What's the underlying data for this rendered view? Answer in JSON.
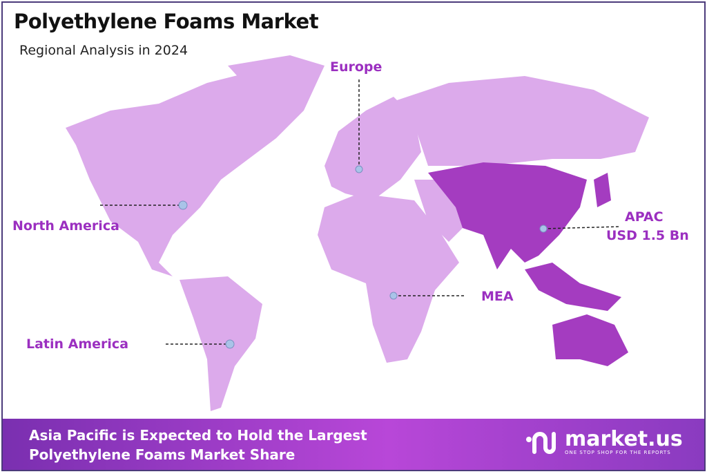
{
  "header": {
    "title": "Polyethylene Foams Market",
    "subtitle": "Regional Analysis in 2024"
  },
  "regions": [
    {
      "name": "Europe"
    },
    {
      "name": "North America"
    },
    {
      "name": "APAC",
      "value": "USD 1.5 Bn",
      "highlighted": true
    },
    {
      "name": "MEA"
    },
    {
      "name": "Latin America"
    }
  ],
  "colors": {
    "land": "#dcaaeb",
    "highlight": "#a43cc0",
    "label": "#9b2fc0",
    "marker": "#a9c3e8"
  },
  "footer": {
    "headline_line1": "Asia Pacific is Expected to Hold the Largest",
    "headline_line2": "Polyethylene Foams Market Share"
  },
  "logo": {
    "name": "market.us",
    "tagline": "ONE STOP SHOP FOR THE REPORTS"
  }
}
